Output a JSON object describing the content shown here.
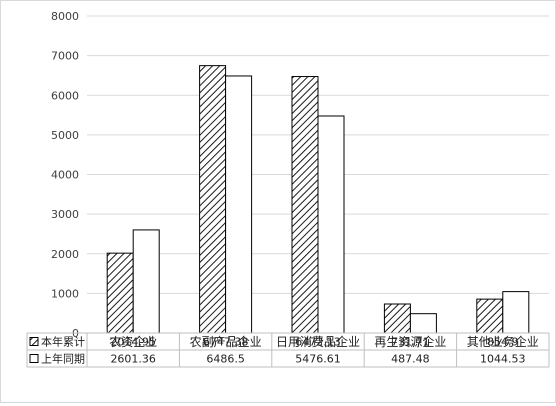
{
  "chart_data": {
    "type": "bar",
    "categories": [
      "农资企业",
      "农副产品企业",
      "日用消费品企业",
      "再生资源企业",
      "其他业务企业"
    ],
    "series": [
      {
        "name": "本年累计",
        "values": [
          2014.95,
          6747.38,
          6472.13,
          731.71,
          854.9
        ],
        "value_labels": [
          "2014.95",
          "6747.38",
          "6472.13",
          "731.71",
          "854.9"
        ],
        "fill": "hatched"
      },
      {
        "name": "上年同期",
        "values": [
          2601.36,
          6486.5,
          5476.61,
          487.48,
          1044.53
        ],
        "value_labels": [
          "2601.36",
          "6486.5",
          "5476.61",
          "487.48",
          "1044.53"
        ],
        "fill": "white"
      }
    ],
    "ylim": [
      0,
      8000
    ],
    "yticks": [
      0,
      1000,
      2000,
      3000,
      4000,
      5000,
      6000,
      7000,
      8000
    ],
    "grid": true,
    "data_table": true,
    "colors": {
      "bar_outline": "#000000",
      "hatch": "#000000",
      "grid": "#d9d9d9",
      "axis": "#bfbfbf"
    }
  }
}
